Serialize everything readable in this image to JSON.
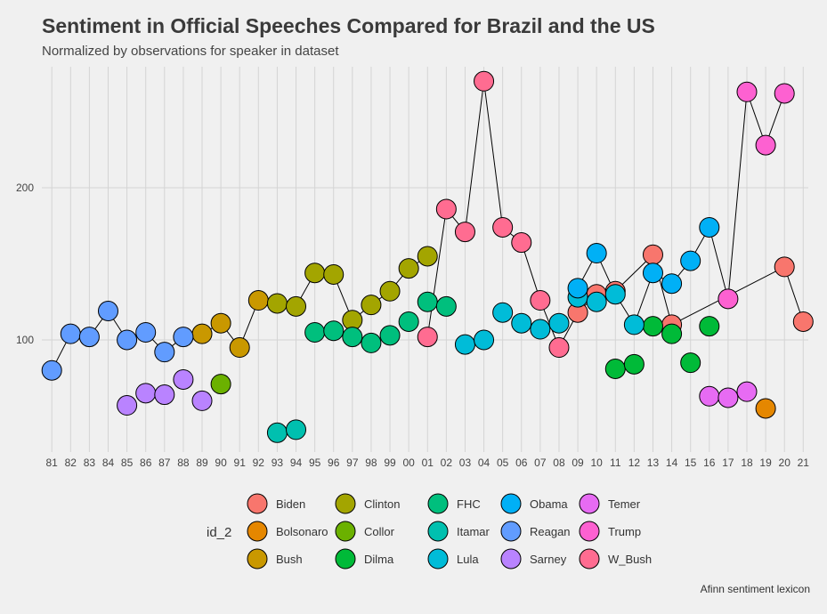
{
  "chart_data": {
    "type": "scatter",
    "title": "Sentiment in Official Speeches Compared for Brazil and the US",
    "subtitle": "Normalized by observations for speaker in dataset",
    "caption": "Afinn sentiment lexicon",
    "x_ticks": [
      "81",
      "82",
      "83",
      "84",
      "85",
      "86",
      "87",
      "88",
      "89",
      "90",
      "91",
      "92",
      "93",
      "94",
      "95",
      "96",
      "97",
      "98",
      "99",
      "00",
      "01",
      "02",
      "03",
      "04",
      "05",
      "06",
      "07",
      "08",
      "09",
      "10",
      "11",
      "12",
      "13",
      "14",
      "15",
      "16",
      "17",
      "18",
      "19",
      "20",
      "21"
    ],
    "y_ticks": [
      100,
      200
    ],
    "ylim": [
      32,
      275
    ],
    "legend_title": "id_2",
    "grid": true,
    "series": [
      {
        "name": "Biden",
        "color": "#F8766D",
        "points": [
          [
            9,
            118
          ],
          [
            10,
            130
          ],
          [
            11,
            132
          ],
          [
            13,
            156
          ],
          [
            14,
            110
          ],
          [
            20,
            148
          ],
          [
            21,
            112
          ]
        ],
        "path": [
          [
            9,
            118
          ],
          [
            10,
            130
          ],
          [
            11,
            132
          ],
          [
            13,
            156
          ],
          [
            14,
            110
          ],
          [
            20,
            148
          ],
          [
            21,
            112
          ]
        ]
      },
      {
        "name": "Bolsonaro",
        "color": "#E58700",
        "points": [
          [
            19,
            55
          ]
        ],
        "path": []
      },
      {
        "name": "Bush",
        "color": "#C99800",
        "points": [
          [
            89,
            104
          ],
          [
            90,
            111
          ],
          [
            91,
            95
          ],
          [
            92,
            126
          ]
        ],
        "path": [
          [
            89,
            104
          ],
          [
            90,
            111
          ],
          [
            91,
            95
          ],
          [
            92,
            126
          ]
        ]
      },
      {
        "name": "Clinton",
        "color": "#A3A500",
        "points": [
          [
            93,
            124
          ],
          [
            94,
            122
          ],
          [
            95,
            144
          ],
          [
            96,
            143
          ],
          [
            97,
            113
          ],
          [
            98,
            123
          ],
          [
            99,
            132
          ],
          [
            0,
            147
          ],
          [
            1,
            155
          ]
        ],
        "path": [
          [
            92,
            126
          ],
          [
            93,
            124
          ],
          [
            94,
            122
          ],
          [
            95,
            144
          ],
          [
            96,
            143
          ],
          [
            97,
            113
          ],
          [
            98,
            123
          ],
          [
            99,
            132
          ],
          [
            0,
            147
          ],
          [
            1,
            155
          ]
        ]
      },
      {
        "name": "Collor",
        "color": "#6BB100",
        "points": [
          [
            90,
            71
          ]
        ],
        "path": []
      },
      {
        "name": "Dilma",
        "color": "#00BA38",
        "points": [
          [
            11,
            81
          ],
          [
            12,
            84
          ],
          [
            13,
            109
          ],
          [
            14,
            104
          ],
          [
            15,
            85
          ],
          [
            16,
            109
          ]
        ],
        "path": []
      },
      {
        "name": "FHC",
        "color": "#00BF7D",
        "points": [
          [
            95,
            105
          ],
          [
            96,
            106
          ],
          [
            97,
            102
          ],
          [
            98,
            98
          ],
          [
            99,
            103
          ],
          [
            0,
            112
          ],
          [
            1,
            125
          ],
          [
            2,
            122
          ]
        ],
        "path": []
      },
      {
        "name": "Itamar",
        "color": "#00C0AF",
        "points": [
          [
            93,
            39
          ],
          [
            94,
            41
          ]
        ],
        "path": []
      },
      {
        "name": "Lula",
        "color": "#00BCD8",
        "points": [
          [
            3,
            97
          ],
          [
            4,
            100
          ],
          [
            5,
            118
          ],
          [
            6,
            111
          ],
          [
            7,
            107
          ],
          [
            8,
            111
          ],
          [
            9,
            128
          ],
          [
            10,
            125
          ],
          [
            11,
            130
          ],
          [
            12,
            110
          ]
        ],
        "path": []
      },
      {
        "name": "Obama",
        "color": "#00B0F6",
        "points": [
          [
            9,
            134
          ],
          [
            10,
            157
          ],
          [
            13,
            144
          ],
          [
            14,
            137
          ],
          [
            15,
            152
          ],
          [
            16,
            174
          ]
        ],
        "path": [
          [
            9,
            134
          ],
          [
            10,
            157
          ],
          [
            11,
            130
          ],
          [
            12,
            110
          ],
          [
            13,
            144
          ],
          [
            14,
            137
          ],
          [
            15,
            152
          ],
          [
            16,
            174
          ]
        ]
      },
      {
        "name": "Reagan",
        "color": "#619CFF",
        "points": [
          [
            81,
            80
          ],
          [
            82,
            104
          ],
          [
            83,
            102
          ],
          [
            84,
            119
          ],
          [
            85,
            100
          ],
          [
            86,
            105
          ],
          [
            87,
            92
          ],
          [
            88,
            102
          ]
        ],
        "path": [
          [
            81,
            80
          ],
          [
            82,
            104
          ],
          [
            83,
            102
          ],
          [
            84,
            119
          ],
          [
            85,
            100
          ],
          [
            86,
            105
          ],
          [
            87,
            92
          ],
          [
            88,
            102
          ]
        ]
      },
      {
        "name": "Sarney",
        "color": "#B983FF",
        "points": [
          [
            85,
            57
          ],
          [
            86,
            65
          ],
          [
            87,
            64
          ],
          [
            88,
            74
          ],
          [
            89,
            60
          ]
        ],
        "path": []
      },
      {
        "name": "Temer",
        "color": "#E76BF3",
        "points": [
          [
            16,
            63
          ],
          [
            17,
            62
          ],
          [
            18,
            66
          ]
        ],
        "path": []
      },
      {
        "name": "Trump",
        "color": "#FD61D1",
        "points": [
          [
            17,
            127
          ],
          [
            18,
            263
          ],
          [
            19,
            228
          ],
          [
            20,
            262
          ]
        ],
        "path": [
          [
            16,
            174
          ],
          [
            17,
            127
          ],
          [
            18,
            263
          ],
          [
            19,
            228
          ],
          [
            20,
            262
          ]
        ]
      },
      {
        "name": "W_Bush",
        "color": "#FF6C91",
        "points": [
          [
            1,
            102
          ],
          [
            2,
            186
          ],
          [
            3,
            171
          ],
          [
            4,
            270
          ],
          [
            5,
            174
          ],
          [
            6,
            164
          ],
          [
            7,
            126
          ],
          [
            8,
            95
          ]
        ],
        "path": [
          [
            1,
            102
          ],
          [
            2,
            186
          ],
          [
            3,
            171
          ],
          [
            4,
            270
          ],
          [
            5,
            174
          ],
          [
            6,
            164
          ],
          [
            7,
            126
          ],
          [
            8,
            95
          ],
          [
            9,
            118
          ]
        ]
      }
    ]
  }
}
